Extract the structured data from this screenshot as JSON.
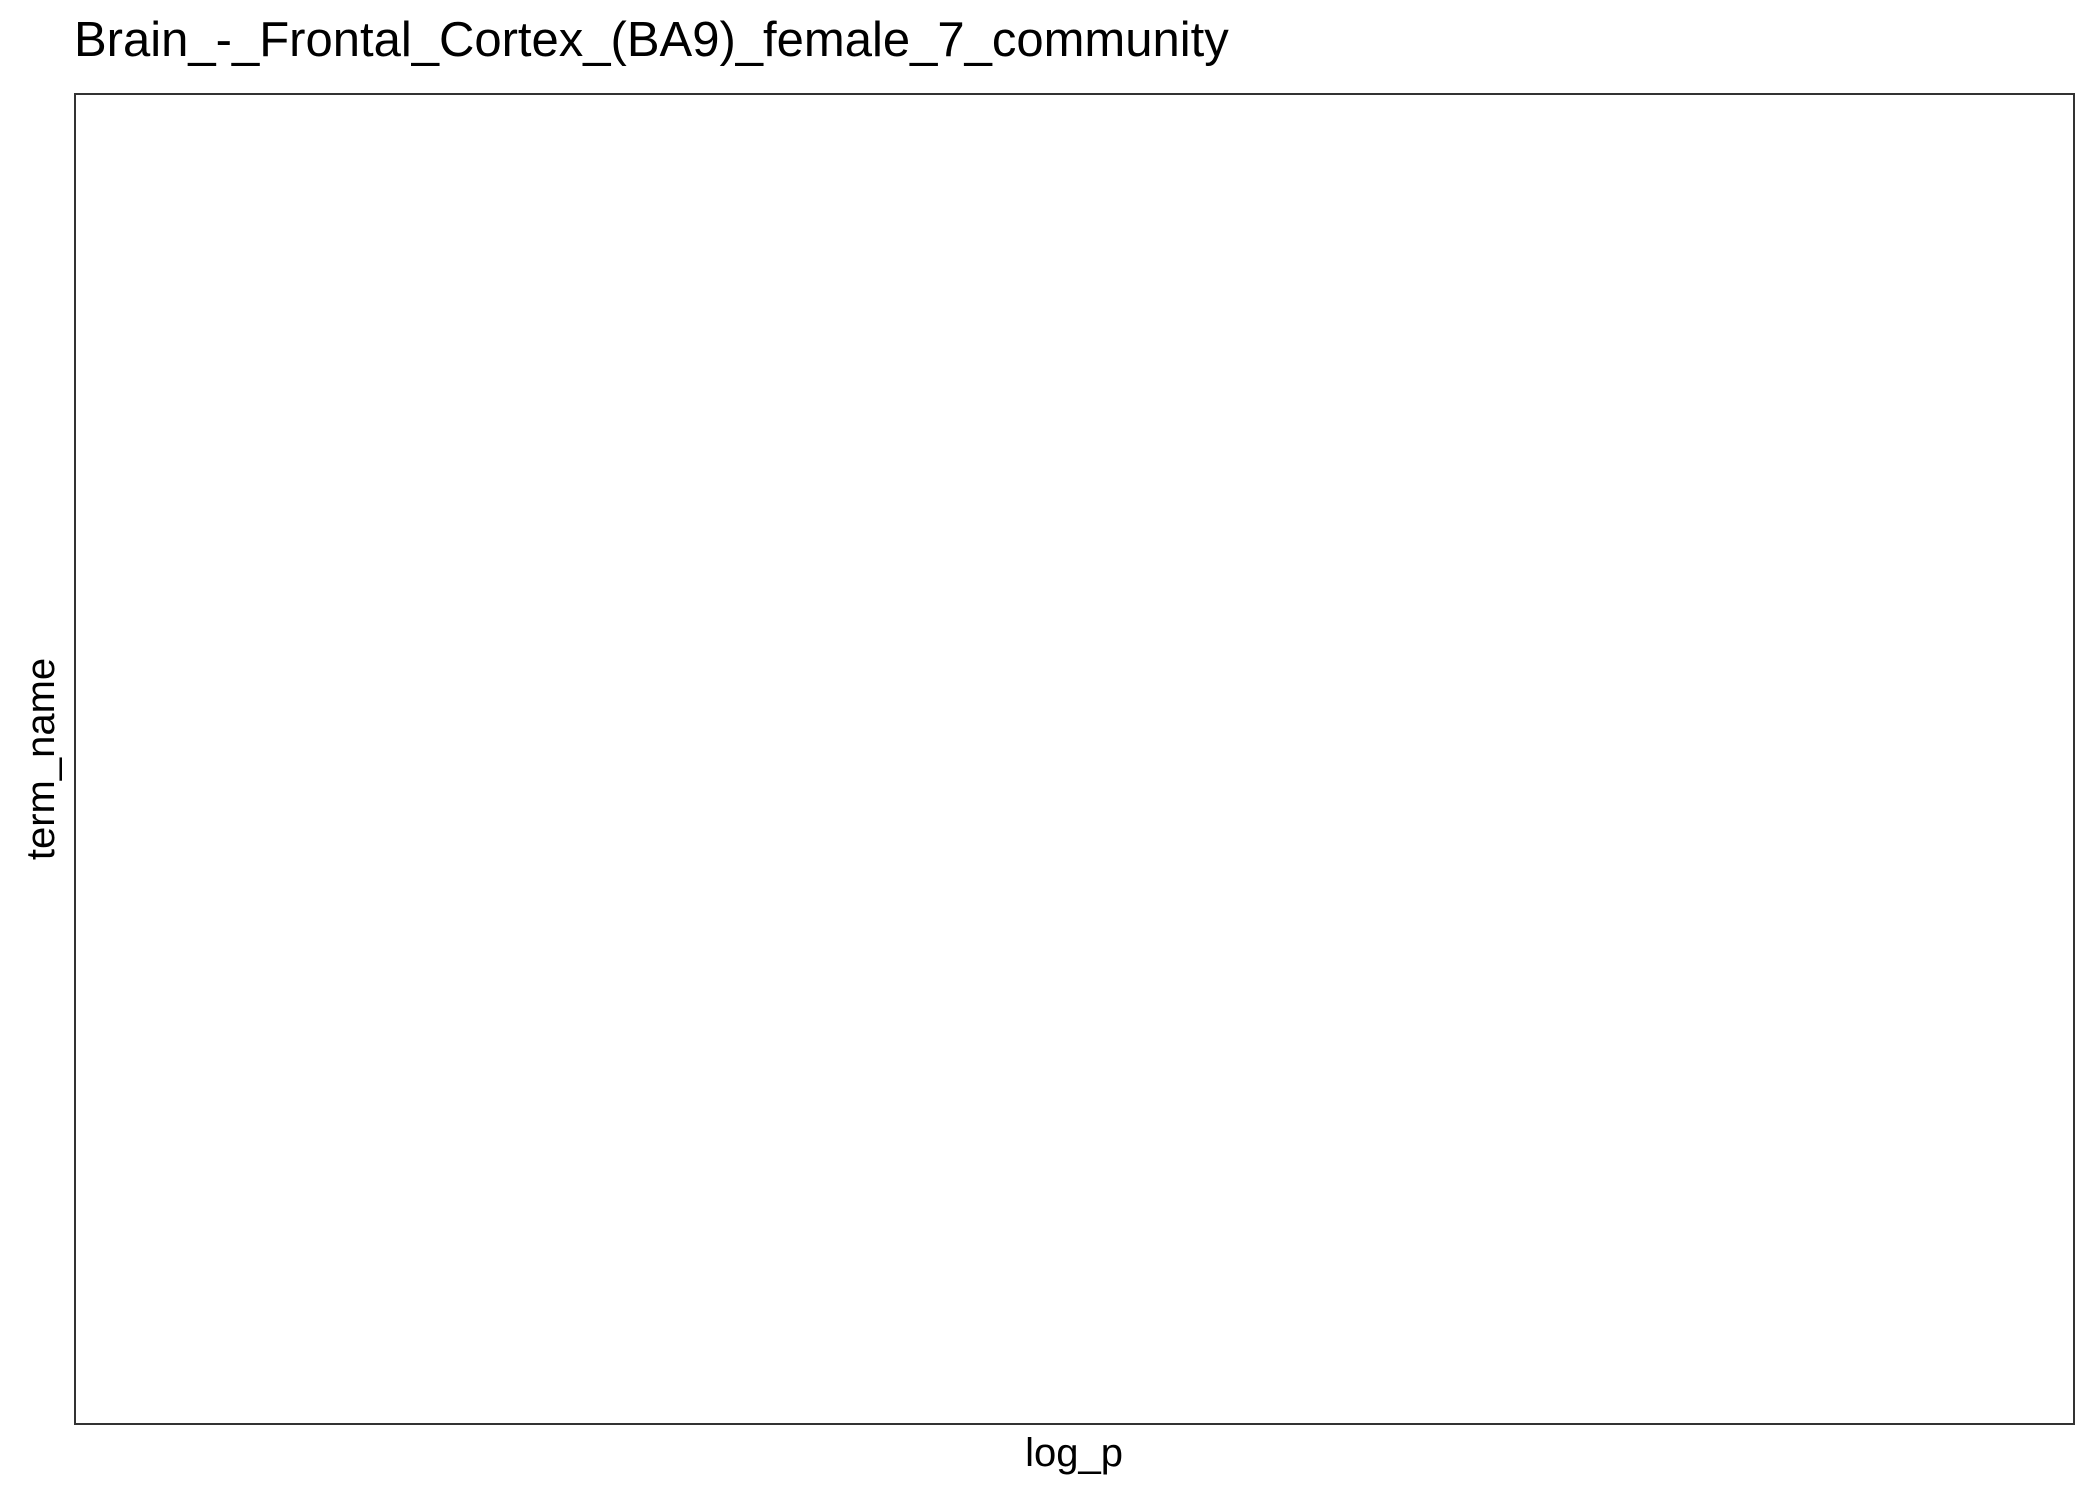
{
  "chart_data": {
    "type": "bar",
    "title": "Brain_-_Frontal_Cortex_(BA9)_female_7_community",
    "xlabel": "log_p",
    "ylabel": "term_name",
    "categories": [],
    "values": [],
    "grid": false,
    "legend": "none"
  },
  "colors": {
    "background": "#ffffff",
    "panel_border": "#333333",
    "text": "#000000"
  }
}
